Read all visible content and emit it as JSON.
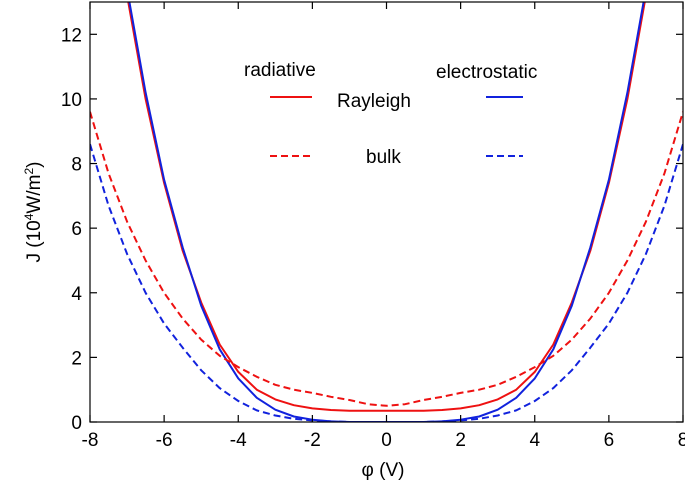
{
  "chart_data": {
    "type": "line",
    "xlabel": "φ (V)",
    "ylabel": {
      "base": "J (10",
      "exp": "4",
      "mid": "W/m",
      "exp2": "2",
      "tail": ")"
    },
    "xlim": [
      -8,
      8
    ],
    "ylim": [
      0,
      13
    ],
    "xticks": [
      -8,
      -6,
      -4,
      -2,
      0,
      2,
      4,
      6,
      8
    ],
    "yticks": [
      0,
      2,
      4,
      6,
      8,
      10,
      12
    ],
    "grid": false,
    "colors": {
      "radiative": "#ee1111",
      "electrostatic": "#1122dd"
    },
    "legend": {
      "group_labels": [
        "radiative",
        "electrostatic"
      ],
      "row_labels": [
        "Rayleigh",
        "bulk"
      ]
    },
    "series": [
      {
        "group": "radiative",
        "kind": "Rayleigh",
        "color": "#ee1111",
        "dash": "solid",
        "x": [
          -7.0,
          -6.5,
          -6.0,
          -5.5,
          -5.0,
          -4.5,
          -4.0,
          -3.5,
          -3.0,
          -2.5,
          -2.0,
          -1.5,
          -1.0,
          -0.5,
          0.0,
          0.5,
          1.0,
          1.5,
          2.0,
          2.5,
          3.0,
          3.5,
          4.0,
          4.5,
          5.0,
          5.5,
          6.0,
          6.5,
          7.0
        ],
        "y": [
          13.2,
          10.0,
          7.4,
          5.3,
          3.7,
          2.4,
          1.55,
          1.0,
          0.7,
          0.52,
          0.42,
          0.37,
          0.35,
          0.35,
          0.35,
          0.35,
          0.35,
          0.37,
          0.42,
          0.52,
          0.7,
          1.0,
          1.55,
          2.4,
          3.7,
          5.3,
          7.4,
          10.0,
          13.2
        ]
      },
      {
        "group": "electrostatic",
        "kind": "Rayleigh",
        "color": "#1122dd",
        "dash": "solid",
        "x": [
          -7.0,
          -6.5,
          -6.0,
          -5.5,
          -5.0,
          -4.5,
          -4.0,
          -3.5,
          -3.0,
          -2.5,
          -2.0,
          -1.5,
          -1.0,
          -0.5,
          0.0,
          0.5,
          1.0,
          1.5,
          2.0,
          2.5,
          3.0,
          3.5,
          4.0,
          4.5,
          5.0,
          5.5,
          6.0,
          6.5,
          7.0
        ],
        "y": [
          13.4,
          10.2,
          7.5,
          5.4,
          3.6,
          2.25,
          1.35,
          0.75,
          0.38,
          0.17,
          0.07,
          0.02,
          0.0,
          0.0,
          0.0,
          0.0,
          0.0,
          0.02,
          0.07,
          0.17,
          0.38,
          0.75,
          1.35,
          2.25,
          3.6,
          5.4,
          7.5,
          10.2,
          13.4
        ]
      },
      {
        "group": "radiative",
        "kind": "bulk",
        "color": "#ee1111",
        "dash": "dashed",
        "x": [
          -8.0,
          -7.5,
          -7.0,
          -6.5,
          -6.0,
          -5.5,
          -5.0,
          -4.5,
          -4.0,
          -3.5,
          -3.0,
          -2.5,
          -2.0,
          -1.5,
          -1.0,
          -0.5,
          0.0,
          0.5,
          1.0,
          1.5,
          2.0,
          2.5,
          3.0,
          3.5,
          4.0,
          4.5,
          5.0,
          5.5,
          6.0,
          6.5,
          7.0,
          7.5,
          8.0
        ],
        "y": [
          9.6,
          7.7,
          6.2,
          5.0,
          4.0,
          3.2,
          2.55,
          2.05,
          1.7,
          1.4,
          1.15,
          1.0,
          0.9,
          0.78,
          0.68,
          0.55,
          0.5,
          0.55,
          0.68,
          0.78,
          0.9,
          1.0,
          1.15,
          1.4,
          1.7,
          2.05,
          2.55,
          3.2,
          4.0,
          5.0,
          6.2,
          7.7,
          9.6
        ]
      },
      {
        "group": "electrostatic",
        "kind": "bulk",
        "color": "#1122dd",
        "dash": "dashed",
        "x": [
          -8.0,
          -7.5,
          -7.0,
          -6.5,
          -6.0,
          -5.5,
          -5.0,
          -4.5,
          -4.0,
          -3.5,
          -3.0,
          -2.5,
          -2.0,
          -1.5,
          -1.0,
          -0.5,
          0.0,
          0.5,
          1.0,
          1.5,
          2.0,
          2.5,
          3.0,
          3.5,
          4.0,
          4.5,
          5.0,
          5.5,
          6.0,
          6.5,
          7.0,
          7.5,
          8.0
        ],
        "y": [
          8.6,
          6.7,
          5.2,
          4.0,
          3.05,
          2.3,
          1.6,
          1.05,
          0.65,
          0.36,
          0.2,
          0.1,
          0.05,
          0.02,
          0.0,
          0.0,
          0.0,
          0.0,
          0.0,
          0.02,
          0.05,
          0.1,
          0.2,
          0.36,
          0.65,
          1.05,
          1.6,
          2.3,
          3.05,
          4.0,
          5.2,
          6.7,
          8.6
        ]
      }
    ]
  }
}
